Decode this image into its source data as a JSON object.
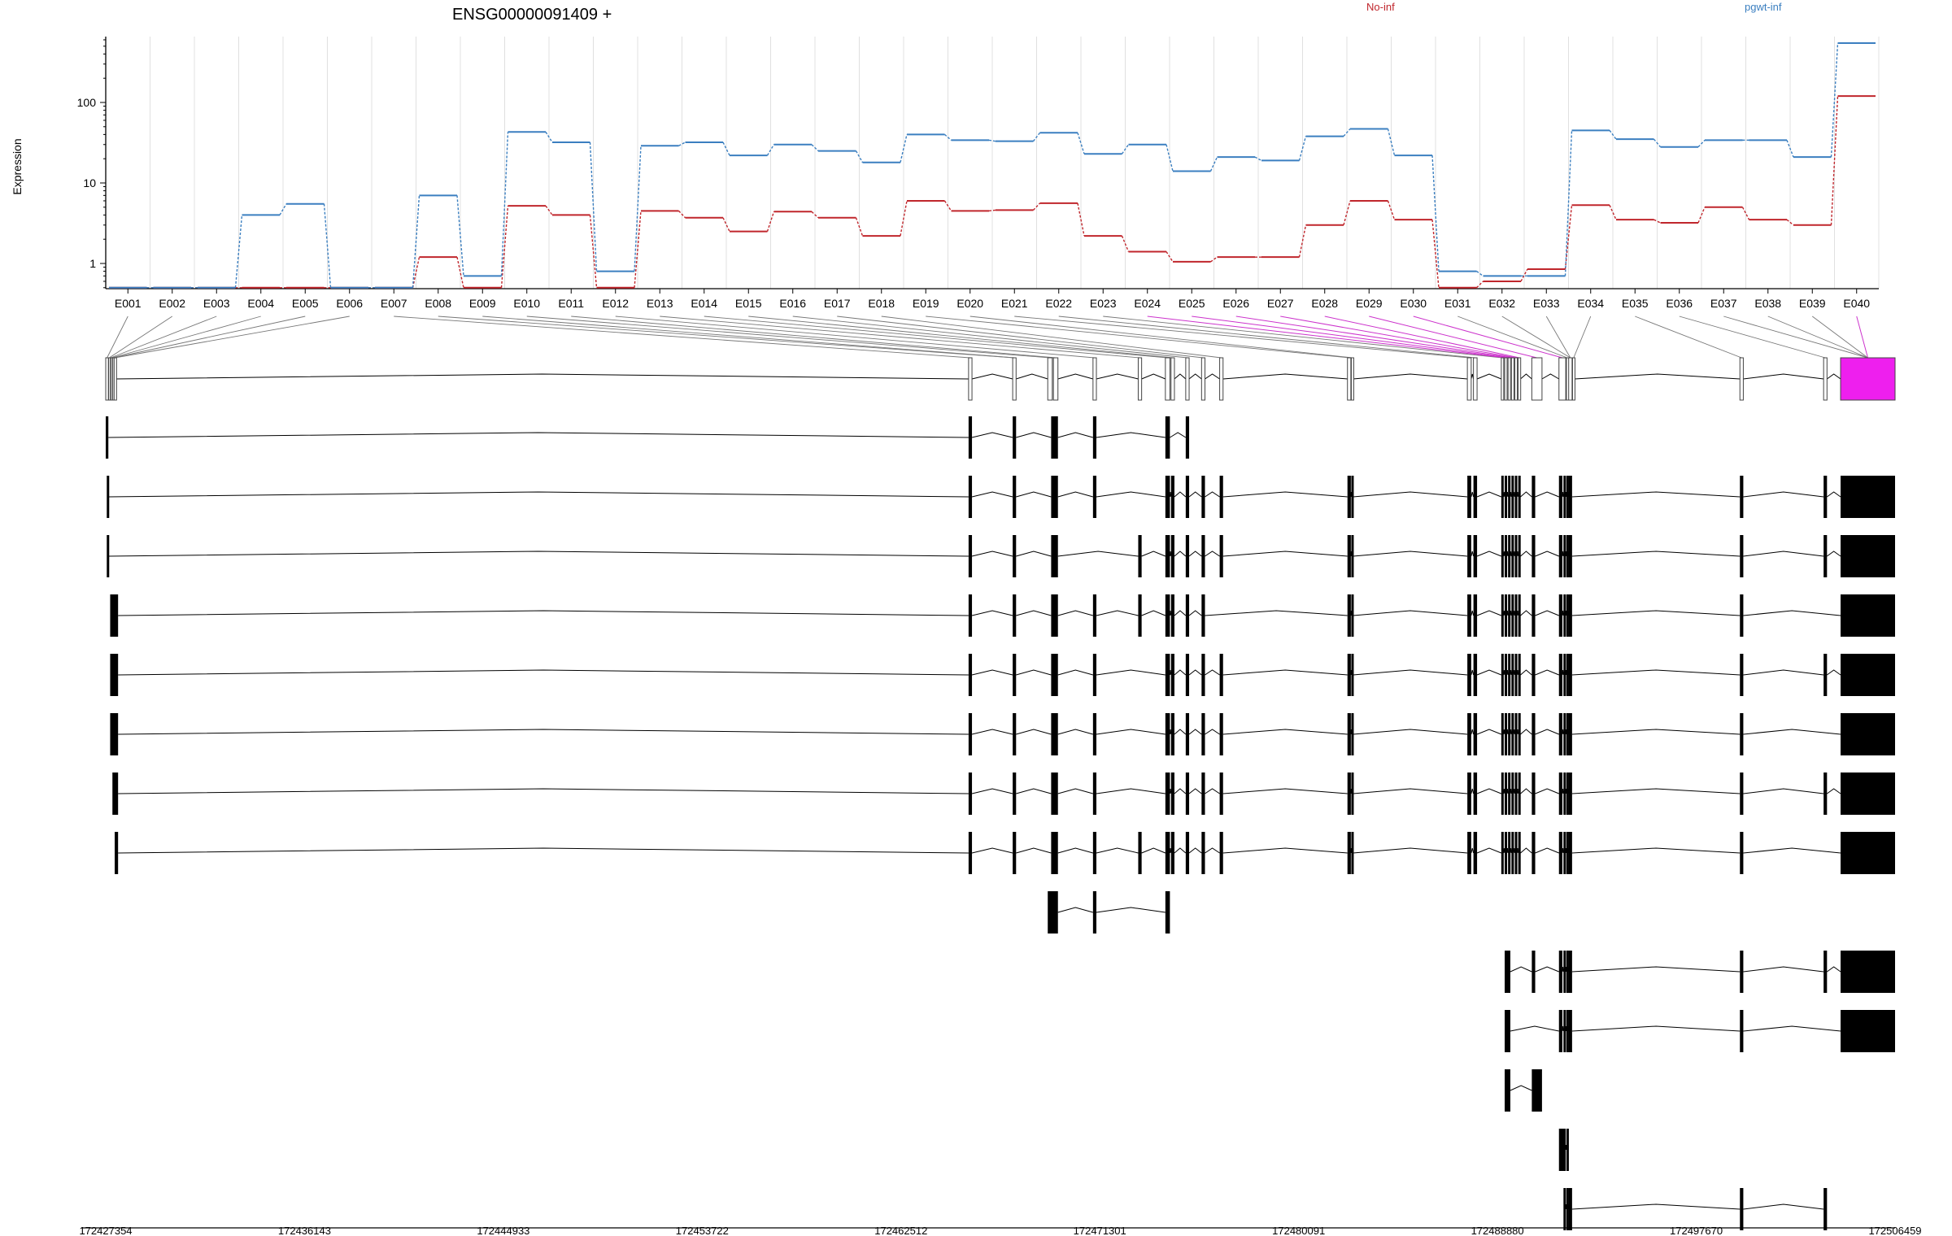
{
  "title": "ENSG00000091409 +",
  "ylabel": "Expression",
  "legend": [
    {
      "name": "No-inf",
      "color": "#c0262c"
    },
    {
      "name": "pgwt-inf",
      "color": "#3b7fc0"
    }
  ],
  "chart_data": {
    "type": "line",
    "scale": "log",
    "ylabel": "Expression",
    "yticks": [
      "1",
      "10",
      "100"
    ],
    "categories": [
      "E001",
      "E002",
      "E003",
      "E004",
      "E005",
      "E006",
      "E007",
      "E008",
      "E009",
      "E010",
      "E011",
      "E012",
      "E013",
      "E014",
      "E015",
      "E016",
      "E017",
      "E018",
      "E019",
      "E020",
      "E021",
      "E022",
      "E023",
      "E024",
      "E025",
      "E026",
      "E027",
      "E028",
      "E029",
      "E030",
      "E031",
      "E032",
      "E033",
      "E034",
      "E035",
      "E036",
      "E037",
      "E038",
      "E039",
      "E040"
    ],
    "highlighted_exon": "E040",
    "series": [
      {
        "name": "No-inf",
        "color": "#c0262c",
        "values": [
          0.5,
          0.5,
          0.5,
          0.5,
          0.5,
          0.5,
          0.5,
          1.2,
          0.5,
          5.2,
          4.0,
          0.5,
          4.5,
          3.7,
          2.5,
          4.4,
          3.7,
          2.2,
          6.0,
          4.5,
          4.6,
          5.6,
          2.2,
          1.4,
          1.05,
          1.2,
          1.2,
          3.0,
          6.0,
          3.5,
          0.5,
          0.6,
          0.85,
          5.3,
          3.5,
          3.2,
          5.0,
          3.5,
          3.0,
          120
        ]
      },
      {
        "name": "pgwt-inf",
        "color": "#3b7fc0",
        "values": [
          0.5,
          0.5,
          0.5,
          4.0,
          5.5,
          0.5,
          0.5,
          7.0,
          0.7,
          43,
          32,
          0.8,
          29,
          32,
          22,
          30,
          25,
          18,
          40,
          34,
          33,
          42,
          23,
          30,
          14,
          21,
          19,
          38,
          47,
          22,
          0.8,
          0.7,
          0.7,
          45,
          35,
          28,
          34,
          34,
          21,
          850
        ]
      }
    ],
    "genome_axis": {
      "ticks": [
        "172427354",
        "172436143",
        "172444933",
        "172453722",
        "172462512",
        "172471301",
        "172480091",
        "172488880",
        "172497670",
        "172506459"
      ],
      "min": 172427354,
      "max": 172506459
    },
    "exons_genomic": [
      [
        172427354,
        172427470
      ],
      [
        172427480,
        172427540
      ],
      [
        172427550,
        172427600
      ],
      [
        172427605,
        172427660
      ],
      [
        172427665,
        172427720
      ],
      [
        172427725,
        172427790
      ],
      [
        172465500,
        172465650
      ],
      [
        172467450,
        172467600
      ],
      [
        172469000,
        172469200
      ],
      [
        172469250,
        172469450
      ],
      [
        172471000,
        172471150
      ],
      [
        172473000,
        172473150
      ],
      [
        172474200,
        172474400
      ],
      [
        172474450,
        172474600
      ],
      [
        172475100,
        172475250
      ],
      [
        172475800,
        172475950
      ],
      [
        172476600,
        172476750
      ],
      [
        172482250,
        172482400
      ],
      [
        172482420,
        172482500
      ],
      [
        172487550,
        172487720
      ],
      [
        172487820,
        172487980
      ],
      [
        172489050,
        172489150
      ],
      [
        172489200,
        172489300
      ],
      [
        172489350,
        172489450
      ],
      [
        172489500,
        172489600
      ],
      [
        172489650,
        172489750
      ],
      [
        172489800,
        172489900
      ],
      [
        172490400,
        172490850
      ],
      [
        172491600,
        172491900
      ],
      [
        172491930,
        172492000
      ],
      [
        172492030,
        172492180
      ],
      [
        172492200,
        172492300
      ],
      [
        172499600,
        172499750
      ],
      [
        172503300,
        172503450
      ],
      [
        172504050,
        172506459
      ]
    ],
    "exon_row_label_map": [
      0,
      1,
      2,
      3,
      4,
      5,
      6,
      7,
      7,
      8,
      9,
      10,
      11,
      12,
      13,
      14,
      15,
      16,
      17,
      18,
      19,
      20,
      21,
      22,
      23,
      24,
      25,
      26,
      27,
      28,
      29,
      30,
      30,
      31,
      32,
      33,
      34,
      35,
      34,
      34
    ],
    "transcripts": [
      [
        [
          172427354,
          172427470
        ],
        [
          172465500,
          172465650
        ],
        [
          172467450,
          172467600
        ],
        [
          172469150,
          172469450
        ],
        [
          172471000,
          172471150
        ],
        [
          172474200,
          172474400
        ],
        [
          172475100,
          172475250
        ]
      ],
      [
        [
          172427400,
          172427470
        ],
        [
          172465500,
          172465650
        ],
        [
          172467450,
          172467600
        ],
        [
          172469150,
          172469450
        ],
        [
          172471000,
          172471150
        ],
        [
          172474200,
          172474400
        ],
        [
          172474450,
          172474600
        ],
        [
          172475100,
          172475250
        ],
        [
          172475800,
          172475950
        ],
        [
          172476600,
          172476750
        ],
        [
          172482250,
          172482400
        ],
        [
          172482420,
          172482500
        ],
        [
          172487550,
          172487720
        ],
        [
          172487820,
          172487980
        ],
        [
          172489050,
          172489150
        ],
        [
          172489200,
          172489300
        ],
        [
          172489350,
          172489450
        ],
        [
          172489500,
          172489600
        ],
        [
          172489650,
          172489750
        ],
        [
          172489800,
          172489900
        ],
        [
          172490400,
          172490550
        ],
        [
          172491600,
          172491750
        ],
        [
          172491800,
          172491900
        ],
        [
          172491930,
          172492000
        ],
        [
          172492030,
          172492180
        ],
        [
          172499600,
          172499750
        ],
        [
          172503300,
          172503450
        ],
        [
          172504050,
          172506459
        ]
      ],
      [
        [
          172427400,
          172427470
        ],
        [
          172465500,
          172465650
        ],
        [
          172467450,
          172467600
        ],
        [
          172469150,
          172469450
        ],
        [
          172473000,
          172473150
        ],
        [
          172474200,
          172474400
        ],
        [
          172474450,
          172474600
        ],
        [
          172475100,
          172475250
        ],
        [
          172475800,
          172475950
        ],
        [
          172476600,
          172476750
        ],
        [
          172482250,
          172482400
        ],
        [
          172482420,
          172482500
        ],
        [
          172487550,
          172487720
        ],
        [
          172487820,
          172487980
        ],
        [
          172489050,
          172489150
        ],
        [
          172489200,
          172489300
        ],
        [
          172489350,
          172489450
        ],
        [
          172489500,
          172489600
        ],
        [
          172489650,
          172489750
        ],
        [
          172489800,
          172489900
        ],
        [
          172490400,
          172490550
        ],
        [
          172491600,
          172491750
        ],
        [
          172491800,
          172491900
        ],
        [
          172491930,
          172492000
        ],
        [
          172492030,
          172492180
        ],
        [
          172499600,
          172499750
        ],
        [
          172503300,
          172503450
        ],
        [
          172504050,
          172506459
        ]
      ],
      [
        [
          172427550,
          172427900
        ],
        [
          172465500,
          172465650
        ],
        [
          172467450,
          172467600
        ],
        [
          172469150,
          172469450
        ],
        [
          172471000,
          172471150
        ],
        [
          172473000,
          172473150
        ],
        [
          172474200,
          172474400
        ],
        [
          172474450,
          172474600
        ],
        [
          172475100,
          172475250
        ],
        [
          172475800,
          172475950
        ],
        [
          172482250,
          172482400
        ],
        [
          172482420,
          172482500
        ],
        [
          172487550,
          172487720
        ],
        [
          172487820,
          172487980
        ],
        [
          172489050,
          172489150
        ],
        [
          172489200,
          172489300
        ],
        [
          172489350,
          172489450
        ],
        [
          172489500,
          172489600
        ],
        [
          172489650,
          172489750
        ],
        [
          172489800,
          172489900
        ],
        [
          172490400,
          172490550
        ],
        [
          172491600,
          172491750
        ],
        [
          172491800,
          172491900
        ],
        [
          172491930,
          172492000
        ],
        [
          172492030,
          172492180
        ],
        [
          172499600,
          172499750
        ],
        [
          172504050,
          172506459
        ]
      ],
      [
        [
          172427550,
          172427900
        ],
        [
          172465500,
          172465650
        ],
        [
          172467450,
          172467600
        ],
        [
          172469150,
          172469450
        ],
        [
          172471000,
          172471150
        ],
        [
          172474200,
          172474400
        ],
        [
          172474450,
          172474600
        ],
        [
          172475100,
          172475250
        ],
        [
          172475800,
          172475950
        ],
        [
          172476600,
          172476750
        ],
        [
          172482250,
          172482400
        ],
        [
          172482420,
          172482500
        ],
        [
          172487550,
          172487720
        ],
        [
          172487820,
          172487980
        ],
        [
          172489050,
          172489150
        ],
        [
          172489200,
          172489300
        ],
        [
          172489350,
          172489450
        ],
        [
          172489500,
          172489600
        ],
        [
          172489650,
          172489750
        ],
        [
          172489800,
          172489900
        ],
        [
          172490400,
          172490550
        ],
        [
          172491600,
          172491750
        ],
        [
          172491800,
          172491900
        ],
        [
          172491930,
          172492000
        ],
        [
          172492030,
          172492180
        ],
        [
          172499600,
          172499750
        ],
        [
          172503300,
          172503450
        ],
        [
          172504050,
          172506459
        ]
      ],
      [
        [
          172427550,
          172427900
        ],
        [
          172465500,
          172465650
        ],
        [
          172467450,
          172467600
        ],
        [
          172469150,
          172469450
        ],
        [
          172471000,
          172471150
        ],
        [
          172474200,
          172474400
        ],
        [
          172474450,
          172474600
        ],
        [
          172475100,
          172475250
        ],
        [
          172475800,
          172475950
        ],
        [
          172476600,
          172476750
        ],
        [
          172482250,
          172482400
        ],
        [
          172482420,
          172482500
        ],
        [
          172487550,
          172487720
        ],
        [
          172487820,
          172487980
        ],
        [
          172489050,
          172489150
        ],
        [
          172489200,
          172489300
        ],
        [
          172489350,
          172489450
        ],
        [
          172489500,
          172489600
        ],
        [
          172489650,
          172489750
        ],
        [
          172489800,
          172489900
        ],
        [
          172490400,
          172490550
        ],
        [
          172491600,
          172491750
        ],
        [
          172491800,
          172491900
        ],
        [
          172491930,
          172492000
        ],
        [
          172492030,
          172492180
        ],
        [
          172499600,
          172499750
        ],
        [
          172504050,
          172506459
        ]
      ],
      [
        [
          172427650,
          172427900
        ],
        [
          172465500,
          172465650
        ],
        [
          172467450,
          172467600
        ],
        [
          172469150,
          172469450
        ],
        [
          172471000,
          172471150
        ],
        [
          172474200,
          172474400
        ],
        [
          172474450,
          172474600
        ],
        [
          172475100,
          172475250
        ],
        [
          172475800,
          172475950
        ],
        [
          172476600,
          172476750
        ],
        [
          172482250,
          172482400
        ],
        [
          172482420,
          172482500
        ],
        [
          172487550,
          172487720
        ],
        [
          172487820,
          172487980
        ],
        [
          172489050,
          172489150
        ],
        [
          172489200,
          172489300
        ],
        [
          172489350,
          172489450
        ],
        [
          172489500,
          172489600
        ],
        [
          172489650,
          172489750
        ],
        [
          172489800,
          172489900
        ],
        [
          172490400,
          172490550
        ],
        [
          172491600,
          172491750
        ],
        [
          172491800,
          172491900
        ],
        [
          172491930,
          172492000
        ],
        [
          172492030,
          172492180
        ],
        [
          172499600,
          172499750
        ],
        [
          172503300,
          172503450
        ],
        [
          172504050,
          172506459
        ]
      ],
      [
        [
          172427750,
          172427900
        ],
        [
          172465500,
          172465650
        ],
        [
          172467450,
          172467600
        ],
        [
          172469150,
          172469450
        ],
        [
          172471000,
          172471150
        ],
        [
          172473000,
          172473150
        ],
        [
          172474200,
          172474400
        ],
        [
          172474450,
          172474600
        ],
        [
          172475100,
          172475250
        ],
        [
          172475800,
          172475950
        ],
        [
          172476600,
          172476750
        ],
        [
          172482250,
          172482400
        ],
        [
          172482420,
          172482500
        ],
        [
          172487550,
          172487720
        ],
        [
          172487820,
          172487980
        ],
        [
          172489050,
          172489150
        ],
        [
          172489200,
          172489300
        ],
        [
          172489350,
          172489450
        ],
        [
          172489500,
          172489600
        ],
        [
          172489650,
          172489750
        ],
        [
          172489800,
          172489900
        ],
        [
          172490400,
          172490550
        ],
        [
          172491600,
          172491750
        ],
        [
          172491800,
          172491900
        ],
        [
          172491930,
          172492000
        ],
        [
          172492030,
          172492180
        ],
        [
          172499600,
          172499750
        ],
        [
          172504050,
          172506459
        ]
      ],
      [
        [
          172469000,
          172469450
        ],
        [
          172471000,
          172471150
        ],
        [
          172474200,
          172474400
        ]
      ],
      [
        [
          172489200,
          172489450
        ],
        [
          172490400,
          172490550
        ],
        [
          172491600,
          172491750
        ],
        [
          172491800,
          172491900
        ],
        [
          172491930,
          172492000
        ],
        [
          172492030,
          172492180
        ],
        [
          172499600,
          172499750
        ],
        [
          172503300,
          172503450
        ],
        [
          172504050,
          172506459
        ]
      ],
      [
        [
          172489200,
          172489450
        ],
        [
          172491600,
          172491750
        ],
        [
          172491800,
          172491900
        ],
        [
          172491930,
          172492000
        ],
        [
          172492030,
          172492180
        ],
        [
          172499600,
          172499750
        ],
        [
          172504050,
          172506459
        ]
      ],
      [
        [
          172489200,
          172489450
        ],
        [
          172490400,
          172490850
        ]
      ],
      [
        [
          172491600,
          172491900
        ],
        [
          172491930,
          172492000
        ]
      ],
      [
        [
          172491800,
          172491900
        ],
        [
          172491930,
          172492000
        ],
        [
          172492030,
          172492180
        ],
        [
          172499600,
          172499750
        ],
        [
          172503300,
          172503450
        ]
      ]
    ]
  }
}
